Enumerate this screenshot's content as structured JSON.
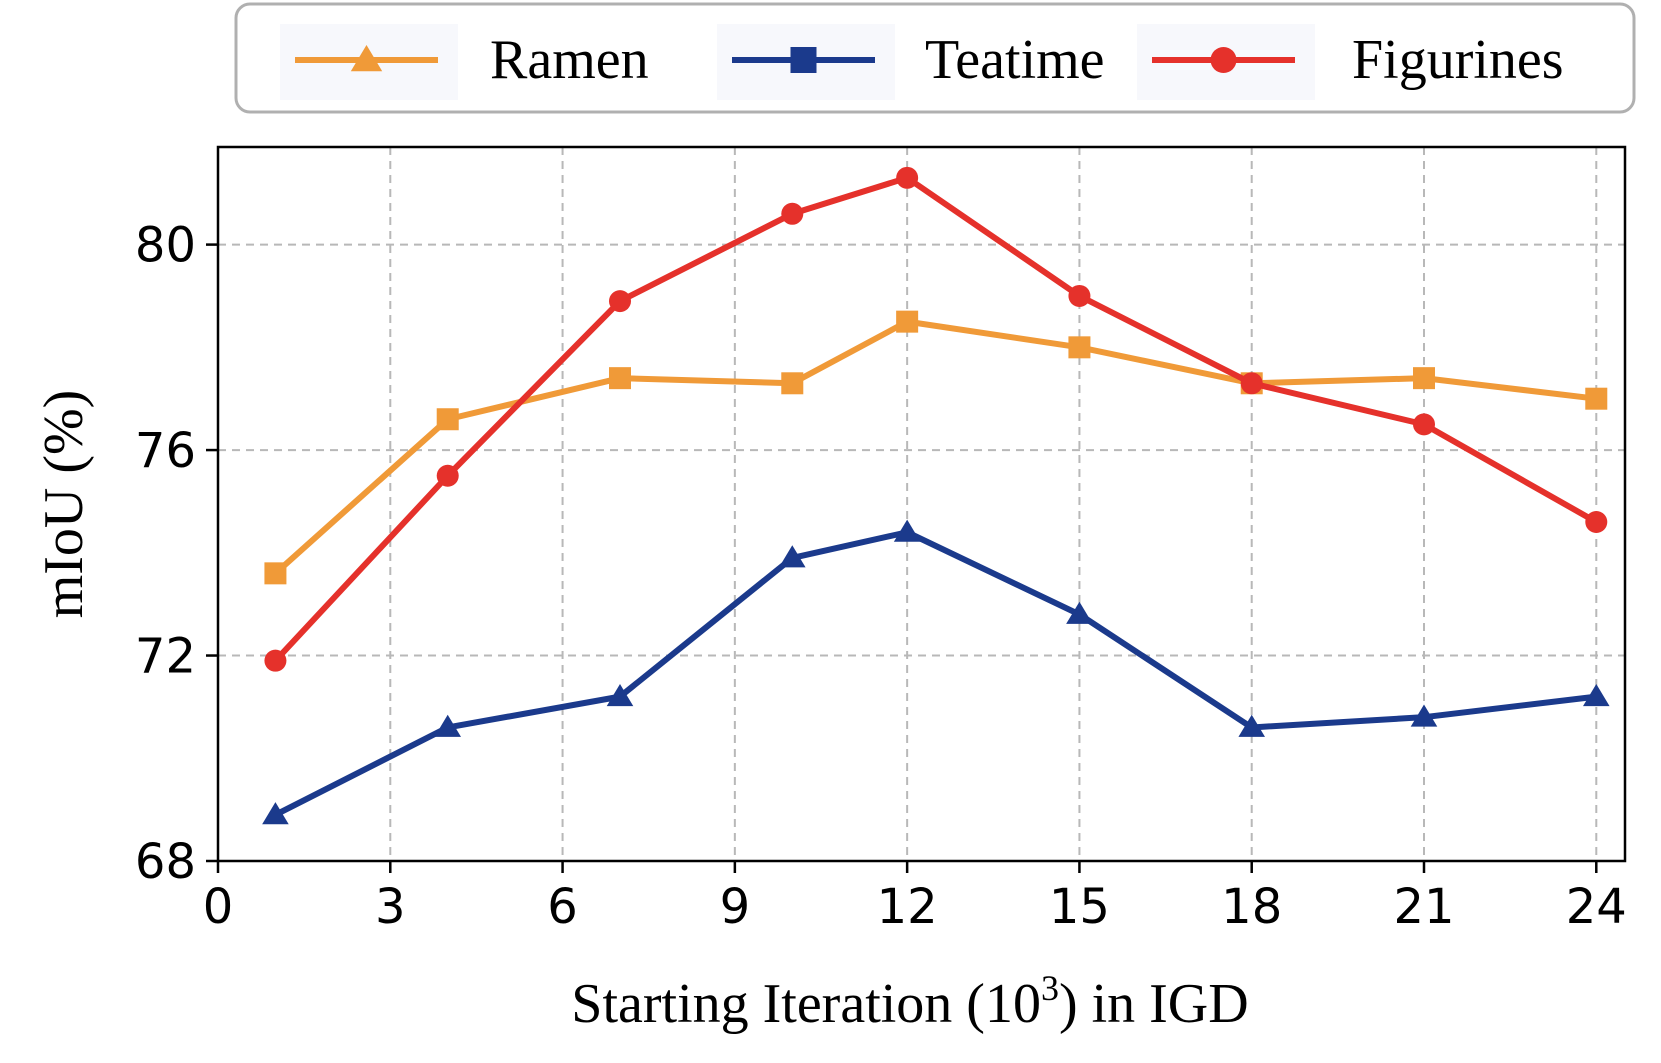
{
  "chart_data": {
    "type": "line",
    "x": [
      1,
      4,
      7,
      10,
      12,
      15,
      18,
      21,
      24
    ],
    "series": [
      {
        "name": "Ramen",
        "legend_marker": "triangle",
        "plot_marker": "square",
        "color": "#F09A38",
        "values": [
          73.6,
          76.6,
          77.4,
          77.3,
          78.5,
          78.0,
          77.3,
          77.4,
          77.0
        ]
      },
      {
        "name": "Teatime",
        "legend_marker": "square",
        "plot_marker": "triangle",
        "color": "#1B3A8C",
        "values": [
          68.9,
          70.6,
          71.2,
          73.9,
          74.4,
          72.8,
          70.6,
          70.8,
          71.2
        ]
      },
      {
        "name": "Figurines",
        "legend_marker": "circle",
        "plot_marker": "circle",
        "color": "#E5312B",
        "values": [
          71.9,
          75.5,
          78.9,
          80.6,
          81.3,
          79.0,
          77.3,
          76.5,
          74.6
        ]
      }
    ],
    "xlabel_prefix": "Starting Iteration (10",
    "xlabel_sup": "3",
    "xlabel_suffix": ") in IGD",
    "ylabel": "mIoU (%)",
    "xticks": [
      "0",
      "3",
      "6",
      "9",
      "12",
      "15",
      "18",
      "21",
      "24"
    ],
    "yticks": [
      "68",
      "72",
      "76",
      "80"
    ],
    "xlim": [
      0,
      24.5
    ],
    "ylim": [
      68,
      81.9
    ],
    "grid": true,
    "legend_position": "top-center"
  }
}
